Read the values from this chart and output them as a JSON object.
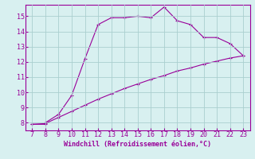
{
  "xlabel": "Windchill (Refroidissement éolien,°C)",
  "x_upper": [
    7,
    8,
    8,
    9,
    9,
    10,
    11,
    12,
    13,
    14,
    15,
    16,
    17,
    18,
    19,
    20,
    21,
    22,
    23
  ],
  "y_upper": [
    7.9,
    7.9,
    8.0,
    8.55,
    8.55,
    9.8,
    12.2,
    14.45,
    14.9,
    14.9,
    15.0,
    14.9,
    15.6,
    14.7,
    14.45,
    13.6,
    13.6,
    13.2,
    12.4
  ],
  "x_lower": [
    7,
    8,
    9,
    10,
    11,
    12,
    13,
    14,
    15,
    16,
    17,
    18,
    19,
    20,
    21,
    22,
    23
  ],
  "y_lower": [
    7.9,
    7.95,
    8.35,
    8.75,
    9.15,
    9.55,
    9.9,
    10.25,
    10.55,
    10.85,
    11.1,
    11.4,
    11.6,
    11.85,
    12.05,
    12.25,
    12.4
  ],
  "line_color": "#990099",
  "marker": "+",
  "bg_color": "#d8f0f0",
  "grid_color": "#aacfcf",
  "xlim": [
    6.5,
    23.5
  ],
  "ylim": [
    7.5,
    15.75
  ],
  "xticks": [
    7,
    8,
    9,
    10,
    11,
    12,
    13,
    14,
    15,
    16,
    17,
    18,
    19,
    20,
    21,
    22,
    23
  ],
  "yticks": [
    8,
    9,
    10,
    11,
    12,
    13,
    14,
    15
  ],
  "tick_color": "#990099",
  "label_color": "#990099",
  "tick_fontsize": 6,
  "xlabel_fontsize": 6,
  "linewidth": 0.8,
  "markersize": 3.5,
  "markeredgewidth": 0.8
}
